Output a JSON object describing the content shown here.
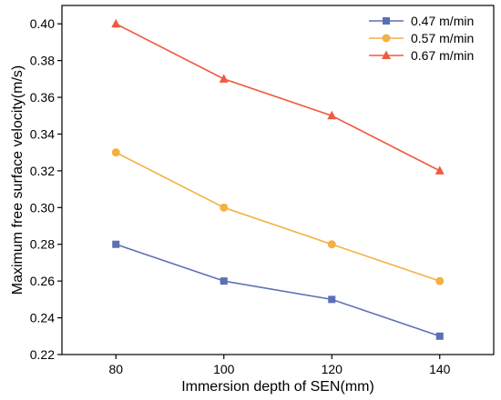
{
  "chart_data": {
    "type": "line",
    "title": "",
    "xlabel": "Immersion depth of SEN(mm)",
    "ylabel": "Maximum free surface velocity(m/s)",
    "x": [
      80,
      100,
      120,
      140
    ],
    "xlim": [
      70,
      150
    ],
    "ylim": [
      0.22,
      0.41
    ],
    "xticks": [
      "80",
      "100",
      "120",
      "140"
    ],
    "yticks": [
      "0.22",
      "0.24",
      "0.26",
      "0.28",
      "0.30",
      "0.32",
      "0.34",
      "0.36",
      "0.38",
      "0.40"
    ],
    "grid": false,
    "legend_position": "top-right",
    "series": [
      {
        "name": "0.47 m/min",
        "values": [
          0.28,
          0.26,
          0.25,
          0.23
        ],
        "color": "#5b6fb5",
        "marker": "square"
      },
      {
        "name": "0.57 m/min",
        "values": [
          0.33,
          0.3,
          0.28,
          0.26
        ],
        "color": "#f5b041",
        "marker": "circle"
      },
      {
        "name": "0.67 m/min",
        "values": [
          0.4,
          0.37,
          0.35,
          0.32
        ],
        "color": "#f05a40",
        "marker": "triangle"
      }
    ]
  }
}
